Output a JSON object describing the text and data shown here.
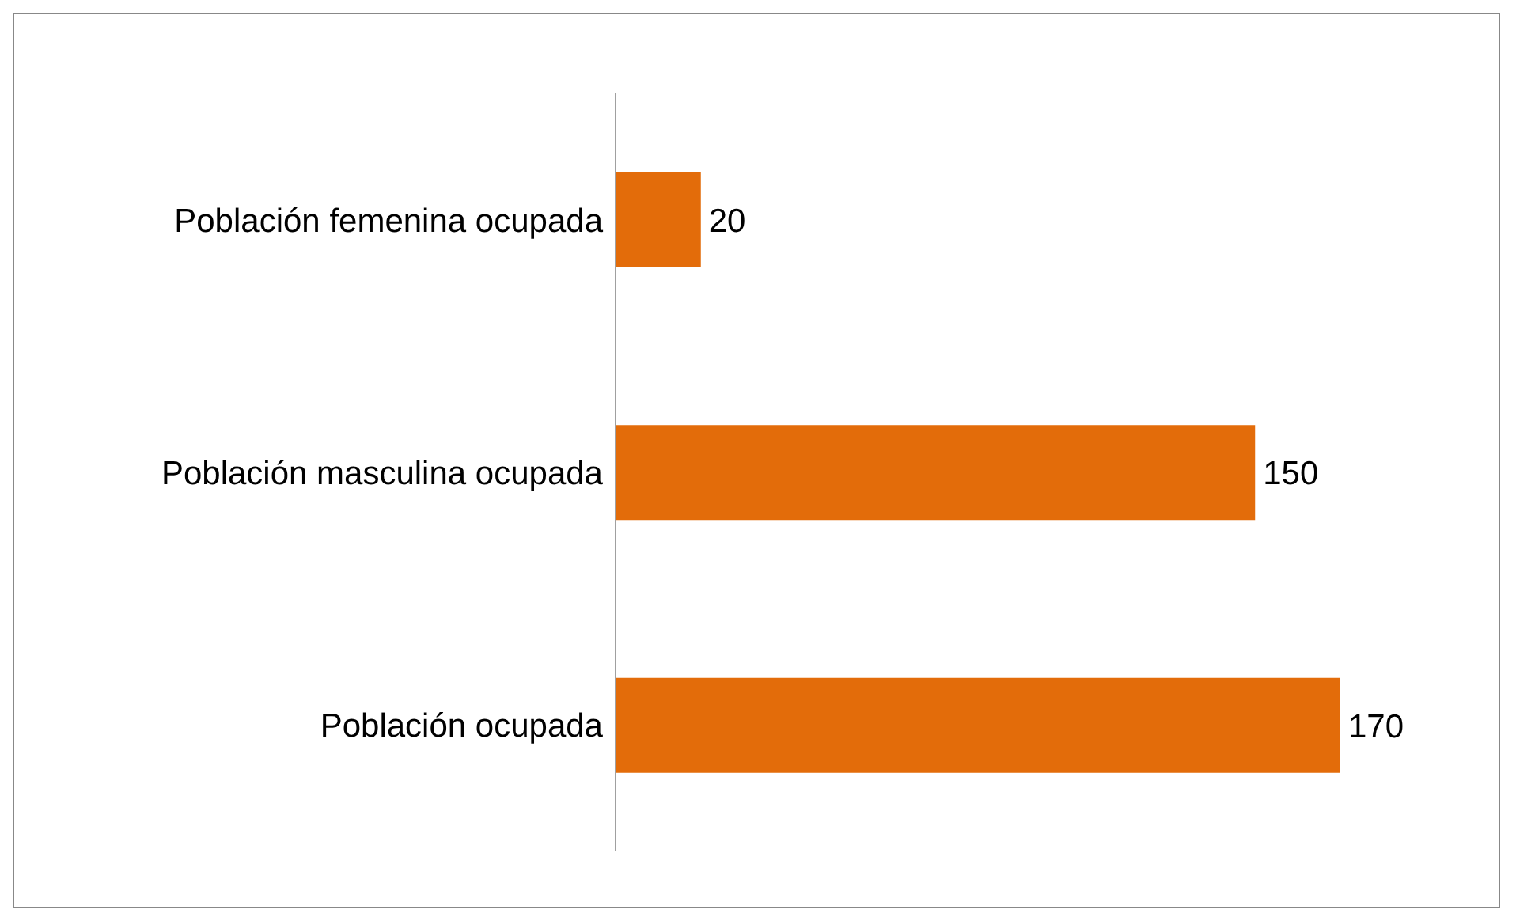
{
  "chart_data": {
    "type": "bar",
    "orientation": "horizontal",
    "categories": [
      "Población femenina  ocupada",
      "Población masculina ocupada",
      "Población ocupada"
    ],
    "values": [
      20,
      150,
      170
    ],
    "color": "#e36c0a",
    "data_labels": true
  }
}
